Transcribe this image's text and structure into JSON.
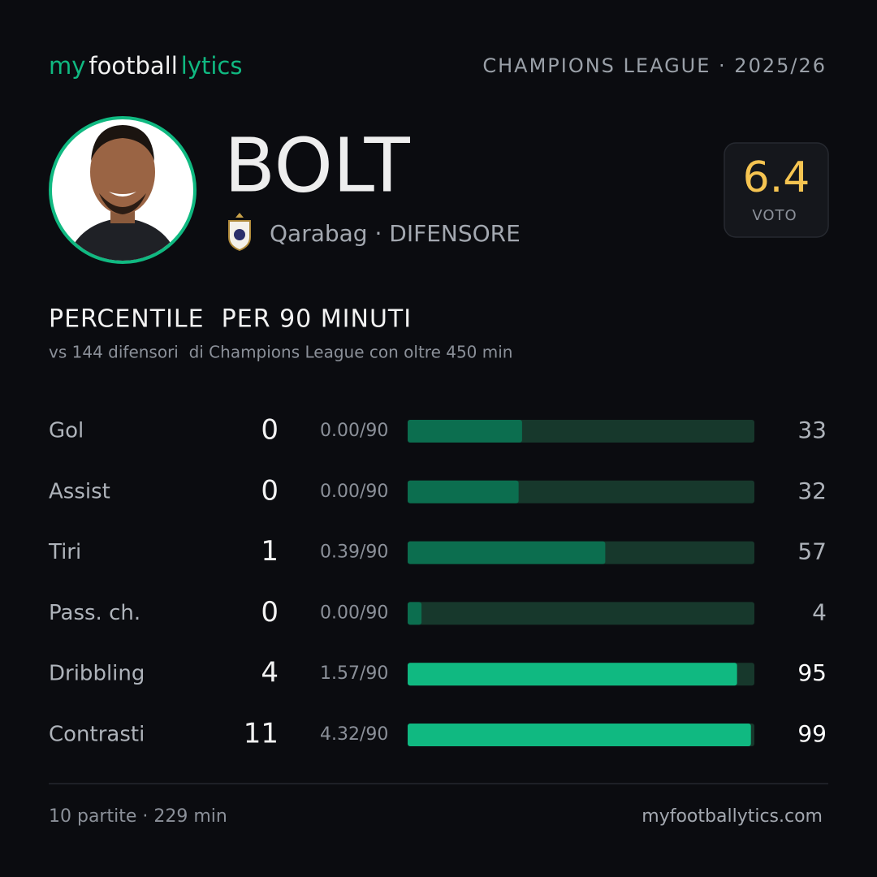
{
  "header": {
    "brand": [
      "my",
      "football",
      "lytics"
    ],
    "competition": "CHAMPIONS LEAGUE · 2025/26"
  },
  "player": {
    "name": "BOLT",
    "subtitle": "Qarabag · DIFENSORE",
    "rating": 6.4,
    "rating_label": "VOTO"
  },
  "section": {
    "title": "PERCENTILE  PER 90 MINUTI",
    "subtitle": "vs 144 difensori  di Champions League con oltre 450 min"
  },
  "stats": {
    "xlim": [
      0,
      100
    ],
    "rows": [
      {
        "label": "Gol",
        "total": 0,
        "per90": "0.00/90",
        "percentile": 33,
        "color": "#0c6e4f"
      },
      {
        "label": "Assist",
        "total": 0,
        "per90": "0.00/90",
        "percentile": 32,
        "color": "#0c6e4f"
      },
      {
        "label": "Tiri",
        "total": 1,
        "per90": "0.39/90",
        "percentile": 57,
        "color": "#0c6e4f"
      },
      {
        "label": "Pass. ch.",
        "total": 0,
        "per90": "0.00/90",
        "percentile": 4,
        "color": "#0c6e4f"
      },
      {
        "label": "Dribbling",
        "total": 4,
        "per90": "1.57/90",
        "percentile": 95,
        "color": "#10b981"
      },
      {
        "label": "Contrasti",
        "total": 11,
        "per90": "4.32/90",
        "percentile": 99,
        "color": "#10b981"
      }
    ]
  },
  "footer": {
    "summary": "10 partite · 229 min",
    "site": "myfootballytics.com"
  }
}
